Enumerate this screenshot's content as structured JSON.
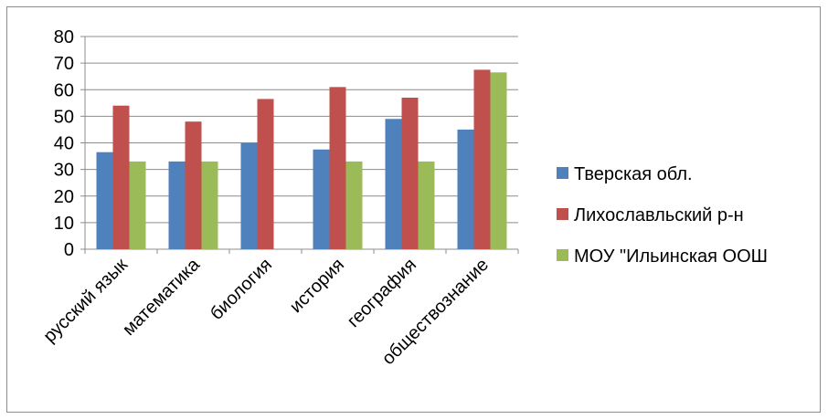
{
  "chart_data": {
    "type": "bar",
    "title": "",
    "xlabel": "",
    "ylabel": "",
    "ylim": [
      0,
      80
    ],
    "yticks": [
      0,
      10,
      20,
      30,
      40,
      50,
      60,
      70,
      80
    ],
    "grid": true,
    "legend_position": "right",
    "categories": [
      "русский язык",
      "математика",
      "биология",
      "история",
      "география",
      "обществознание"
    ],
    "series": [
      {
        "name": "Тверская обл.",
        "color": "#4f81bd",
        "values": [
          36.5,
          33,
          40,
          37.5,
          49,
          45
        ]
      },
      {
        "name": "Лихославльский р-н",
        "color": "#c0504d",
        "values": [
          54,
          48,
          56.5,
          61,
          57,
          67.5
        ]
      },
      {
        "name": "МОУ \"Ильинская ООШ",
        "color": "#9bbb59",
        "values": [
          33,
          33,
          0,
          33,
          33,
          66.5
        ]
      }
    ]
  }
}
